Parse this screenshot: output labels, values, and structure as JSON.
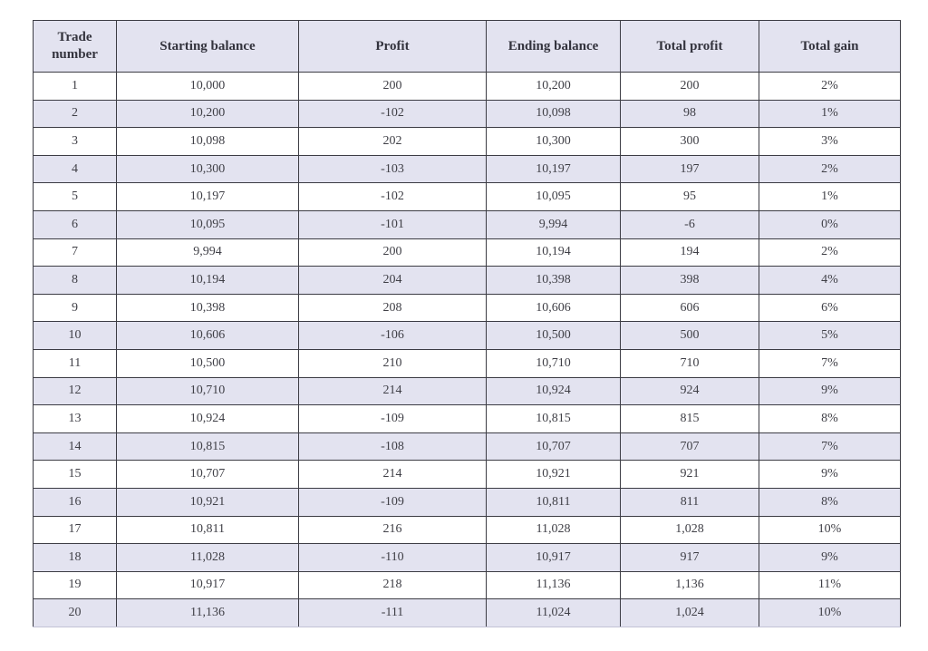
{
  "colors": {
    "stripe_and_header_bg": "#e3e3f0",
    "border": "#3c3c44",
    "header_text": "#33333d",
    "cell_text": "#3f3f46",
    "page_bg": "#ffffff"
  },
  "chart_data": {
    "type": "table",
    "title": "",
    "columns": [
      "Trade number",
      "Starting balance",
      "Profit",
      "Ending balance",
      "Total profit",
      "Total gain"
    ],
    "rows": [
      [
        "1",
        "10,000",
        "200",
        "10,200",
        "200",
        "2%"
      ],
      [
        "2",
        "10,200",
        "-102",
        "10,098",
        "98",
        "1%"
      ],
      [
        "3",
        "10,098",
        "202",
        "10,300",
        "300",
        "3%"
      ],
      [
        "4",
        "10,300",
        "-103",
        "10,197",
        "197",
        "2%"
      ],
      [
        "5",
        "10,197",
        "-102",
        "10,095",
        "95",
        "1%"
      ],
      [
        "6",
        "10,095",
        "-101",
        "9,994",
        "-6",
        "0%"
      ],
      [
        "7",
        "9,994",
        "200",
        "10,194",
        "194",
        "2%"
      ],
      [
        "8",
        "10,194",
        "204",
        "10,398",
        "398",
        "4%"
      ],
      [
        "9",
        "10,398",
        "208",
        "10,606",
        "606",
        "6%"
      ],
      [
        "10",
        "10,606",
        "-106",
        "10,500",
        "500",
        "5%"
      ],
      [
        "11",
        "10,500",
        "210",
        "10,710",
        "710",
        "7%"
      ],
      [
        "12",
        "10,710",
        "214",
        "10,924",
        "924",
        "9%"
      ],
      [
        "13",
        "10,924",
        "-109",
        "10,815",
        "815",
        "8%"
      ],
      [
        "14",
        "10,815",
        "-108",
        "10,707",
        "707",
        "7%"
      ],
      [
        "15",
        "10,707",
        "214",
        "10,921",
        "921",
        "9%"
      ],
      [
        "16",
        "10,921",
        "-109",
        "10,811",
        "811",
        "8%"
      ],
      [
        "17",
        "10,811",
        "216",
        "11,028",
        "1,028",
        "10%"
      ],
      [
        "18",
        "11,028",
        "-110",
        "10,917",
        "917",
        "9%"
      ],
      [
        "19",
        "10,917",
        "218",
        "11,136",
        "1,136",
        "11%"
      ],
      [
        "20",
        "11,136",
        "-111",
        "11,024",
        "1,024",
        "10%"
      ]
    ],
    "layout": {
      "striped": true,
      "stripe_pattern": "even rows shaded lavender",
      "text_align": "center",
      "grid": true
    }
  }
}
